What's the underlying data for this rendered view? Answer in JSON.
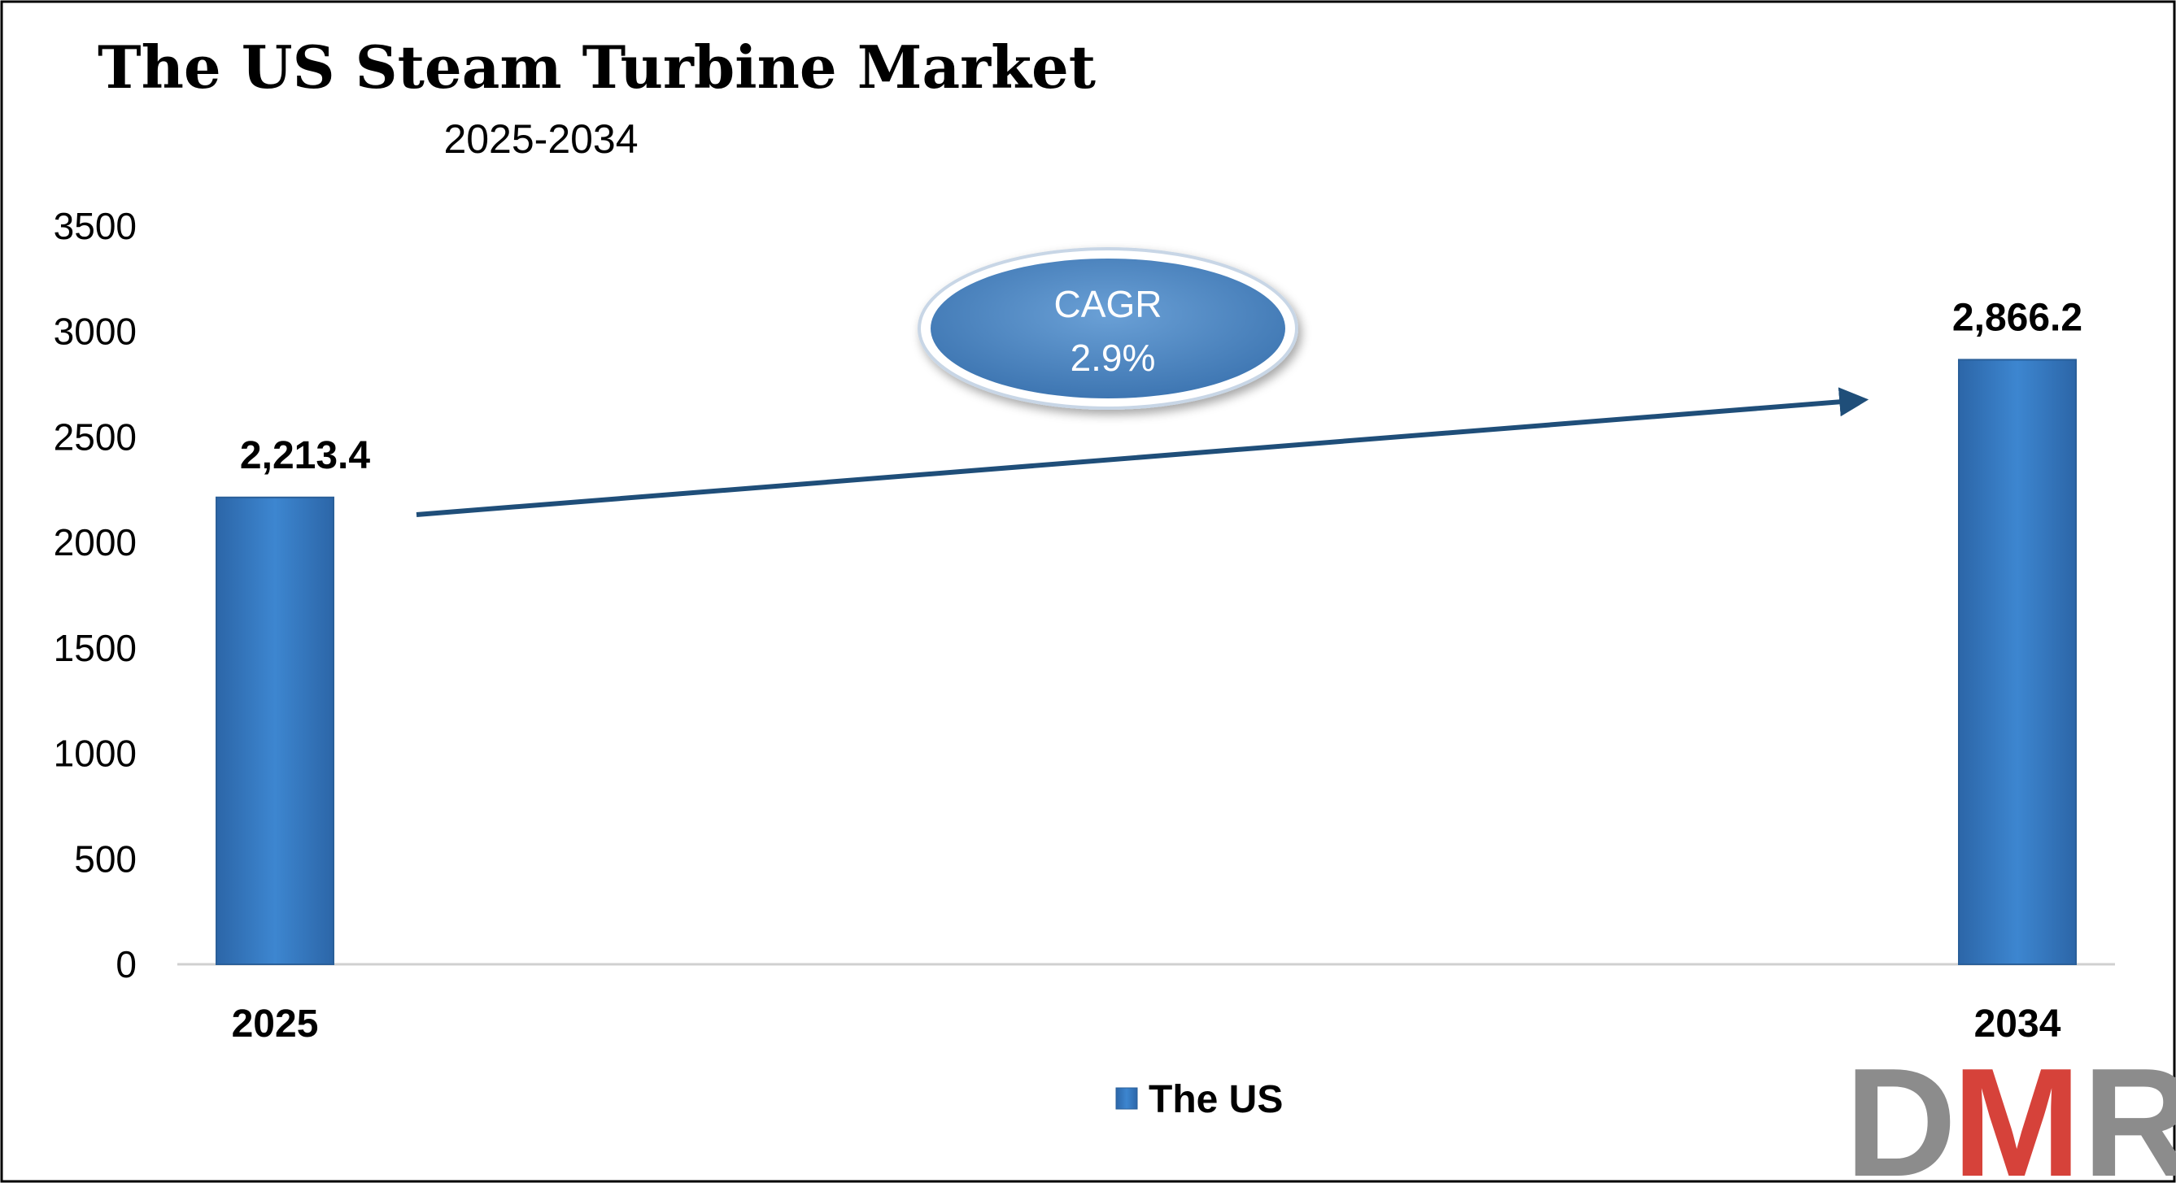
{
  "chart_data": {
    "type": "bar",
    "title": "The US Steam Turbine Market",
    "subtitle": "2025-2034",
    "categories": [
      "2025",
      "2034"
    ],
    "series": [
      {
        "name": "The US",
        "values": [
          2213.4,
          2866.2
        ]
      }
    ],
    "data_labels": [
      "2,213.4",
      "2,866.2"
    ],
    "ylim": [
      0,
      3500
    ],
    "yticks": [
      0,
      500,
      1000,
      1500,
      2000,
      2500,
      3000,
      3500
    ],
    "grid": false,
    "legend_position": "bottom-center",
    "annotation": {
      "label": "CAGR",
      "value": "2.9%"
    },
    "colors": {
      "bar": "#3a7dc4",
      "bar_dark": "#2a5f99",
      "arrow": "#1f4e79",
      "ellipse": "#4a83bf"
    }
  },
  "logo": {
    "text": "DMR",
    "colors": {
      "d": "#8c8c8c",
      "m": "#d6423a",
      "r": "#8c8c8c"
    }
  }
}
